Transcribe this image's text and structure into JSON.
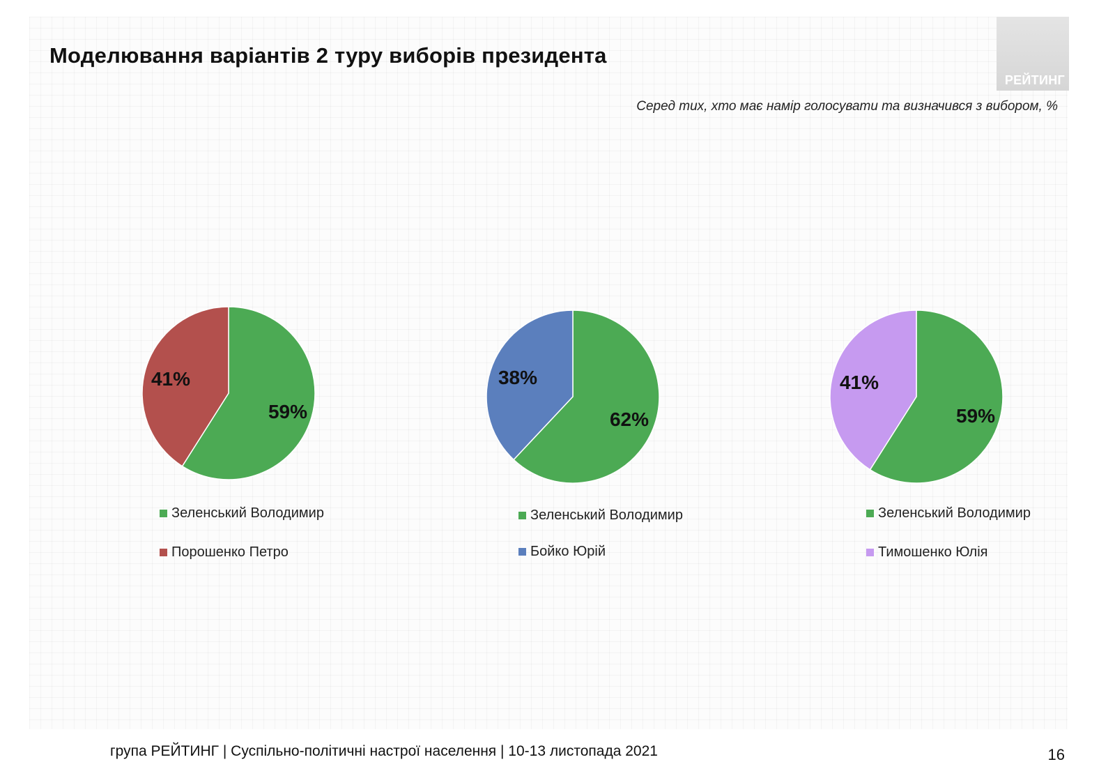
{
  "header": {
    "title": "Моделювання варіантів 2 туру виборів президента",
    "subtitle": "Серед тих, хто має намір голосувати  та визначився з вибором, %",
    "logo_text": "РЕЙТИНГ"
  },
  "chart_data": [
    {
      "type": "pie",
      "categories": [
        "Зеленський Володимир",
        "Порошенко Петро"
      ],
      "values": [
        59,
        41
      ],
      "labels": [
        "59%",
        "41%"
      ],
      "colors": [
        "#4caa54",
        "#b3504d"
      ],
      "legend": "bottom"
    },
    {
      "type": "pie",
      "categories": [
        "Зеленський Володимир",
        "Бойко Юрій"
      ],
      "values": [
        62,
        38
      ],
      "labels": [
        "62%",
        "38%"
      ],
      "colors": [
        "#4caa54",
        "#5b7fbd"
      ],
      "legend": "bottom"
    },
    {
      "type": "pie",
      "categories": [
        "Зеленський Володимир",
        "Тимошенко Юлія"
      ],
      "values": [
        59,
        41
      ],
      "labels": [
        "59%",
        "41%"
      ],
      "colors": [
        "#4caa54",
        "#c69af0"
      ],
      "legend": "bottom"
    }
  ],
  "footer": {
    "text": "група РЕЙТИНГ | Суспільно-політичні настрої населення  | 10-13 листопада 2021",
    "page_number": "16"
  }
}
